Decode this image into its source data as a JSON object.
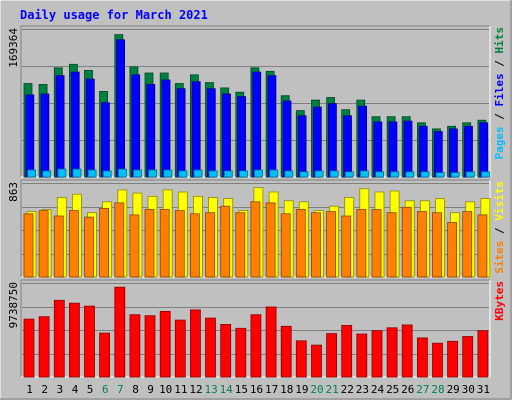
{
  "colors": {
    "background": "#c0c0c0",
    "panel": "#c0c0c0",
    "title": "#0000ff",
    "hits": "#008040",
    "files": "#0000ff",
    "pages": "#00c0ff",
    "visits": "#ffff00",
    "sites": "#ff8000",
    "kbytes": "#ff0000",
    "weekend_label": "#00805c",
    "weekday_label": "#000000"
  },
  "chart_data": {
    "title": "Daily usage for March 2021",
    "type": "bar",
    "x": [
      "1",
      "2",
      "3",
      "4",
      "5",
      "6",
      "7",
      "8",
      "9",
      "10",
      "11",
      "12",
      "13",
      "14",
      "15",
      "16",
      "17",
      "18",
      "19",
      "20",
      "21",
      "22",
      "23",
      "24",
      "25",
      "26",
      "27",
      "28",
      "29",
      "30",
      "31"
    ],
    "weekend_days": [
      "6",
      "7",
      "13",
      "14",
      "20",
      "21",
      "27",
      "28"
    ],
    "panels": [
      {
        "id": "requests",
        "y_max_label": "169364",
        "ylim": [
          0,
          169364
        ],
        "legend": [
          {
            "text": "Pages",
            "series": "Pages"
          },
          {
            "text": "Files",
            "series": "Files"
          },
          {
            "text": "Hits",
            "series": "Hits"
          }
        ],
        "legend_separator": " / ",
        "series": [
          {
            "name": "Hits",
            "values": [
              107000,
              106000,
              125000,
              129000,
              122000,
              98000,
              163000,
              126000,
              119000,
              119000,
              107000,
              117000,
              108000,
              102000,
              97000,
              125000,
              121000,
              93000,
              76000,
              88000,
              91000,
              77000,
              88000,
              69000,
              69000,
              69000,
              62000,
              55000,
              58000,
              62000,
              65000
            ]
          },
          {
            "name": "Files",
            "values": [
              94000,
              95000,
              116000,
              120000,
              112000,
              85000,
              157000,
              117000,
              106000,
              111000,
              101000,
              109000,
              101000,
              95000,
              92000,
              120000,
              116000,
              87000,
              70000,
              80000,
              84000,
              70000,
              81000,
              63000,
              63000,
              64000,
              58000,
              52000,
              55000,
              58000,
              62000
            ]
          },
          {
            "name": "Pages",
            "values": [
              8000,
              7000,
              9000,
              9000,
              8000,
              7000,
              9000,
              8000,
              8000,
              8000,
              7000,
              8000,
              7000,
              7000,
              7000,
              8000,
              8000,
              7000,
              6000,
              7000,
              7000,
              6000,
              7000,
              6000,
              6000,
              6000,
              6000,
              5000,
              5000,
              6000,
              6000
            ]
          }
        ]
      },
      {
        "id": "visits",
        "y_max_label": "863",
        "ylim": [
          0,
          863
        ],
        "legend": [
          {
            "text": "Sites",
            "series": "Sites"
          },
          {
            "text": "Visits",
            "series": "Visits"
          }
        ],
        "legend_separator": " / ",
        "series": [
          {
            "name": "Visits",
            "values": [
              600,
              620,
              730,
              760,
              590,
              690,
              800,
              770,
              740,
              800,
              780,
              740,
              730,
              720,
              610,
              820,
              780,
              700,
              690,
              610,
              650,
              730,
              810,
              780,
              790,
              700,
              700,
              720,
              590,
              690,
              720
            ]
          },
          {
            "name": "Sites",
            "values": [
              580,
              610,
              560,
              610,
              550,
              630,
              680,
              570,
              620,
              620,
              610,
              580,
              590,
              650,
              590,
              690,
              680,
              580,
              620,
              590,
              600,
              560,
              620,
              620,
              590,
              640,
              600,
              590,
              500,
              600,
              570
            ]
          }
        ]
      },
      {
        "id": "kbytes",
        "y_max_label": "9738750",
        "ylim": [
          0,
          9738750
        ],
        "legend": [
          {
            "text": "KBytes",
            "series": "KBytes"
          }
        ],
        "legend_separator": "",
        "series": [
          {
            "name": "KBytes",
            "values": [
              6000000,
              6250000,
              7950000,
              7650000,
              7350000,
              4550000,
              9300000,
              6450000,
              6350000,
              6800000,
              5900000,
              6950000,
              6100000,
              5450000,
              5050000,
              6450000,
              7250000,
              5250000,
              3750000,
              3300000,
              4500000,
              5350000,
              4450000,
              4800000,
              5100000,
              5400000,
              4050000,
              3500000,
              3700000,
              4200000,
              4800000
            ]
          }
        ]
      }
    ]
  }
}
